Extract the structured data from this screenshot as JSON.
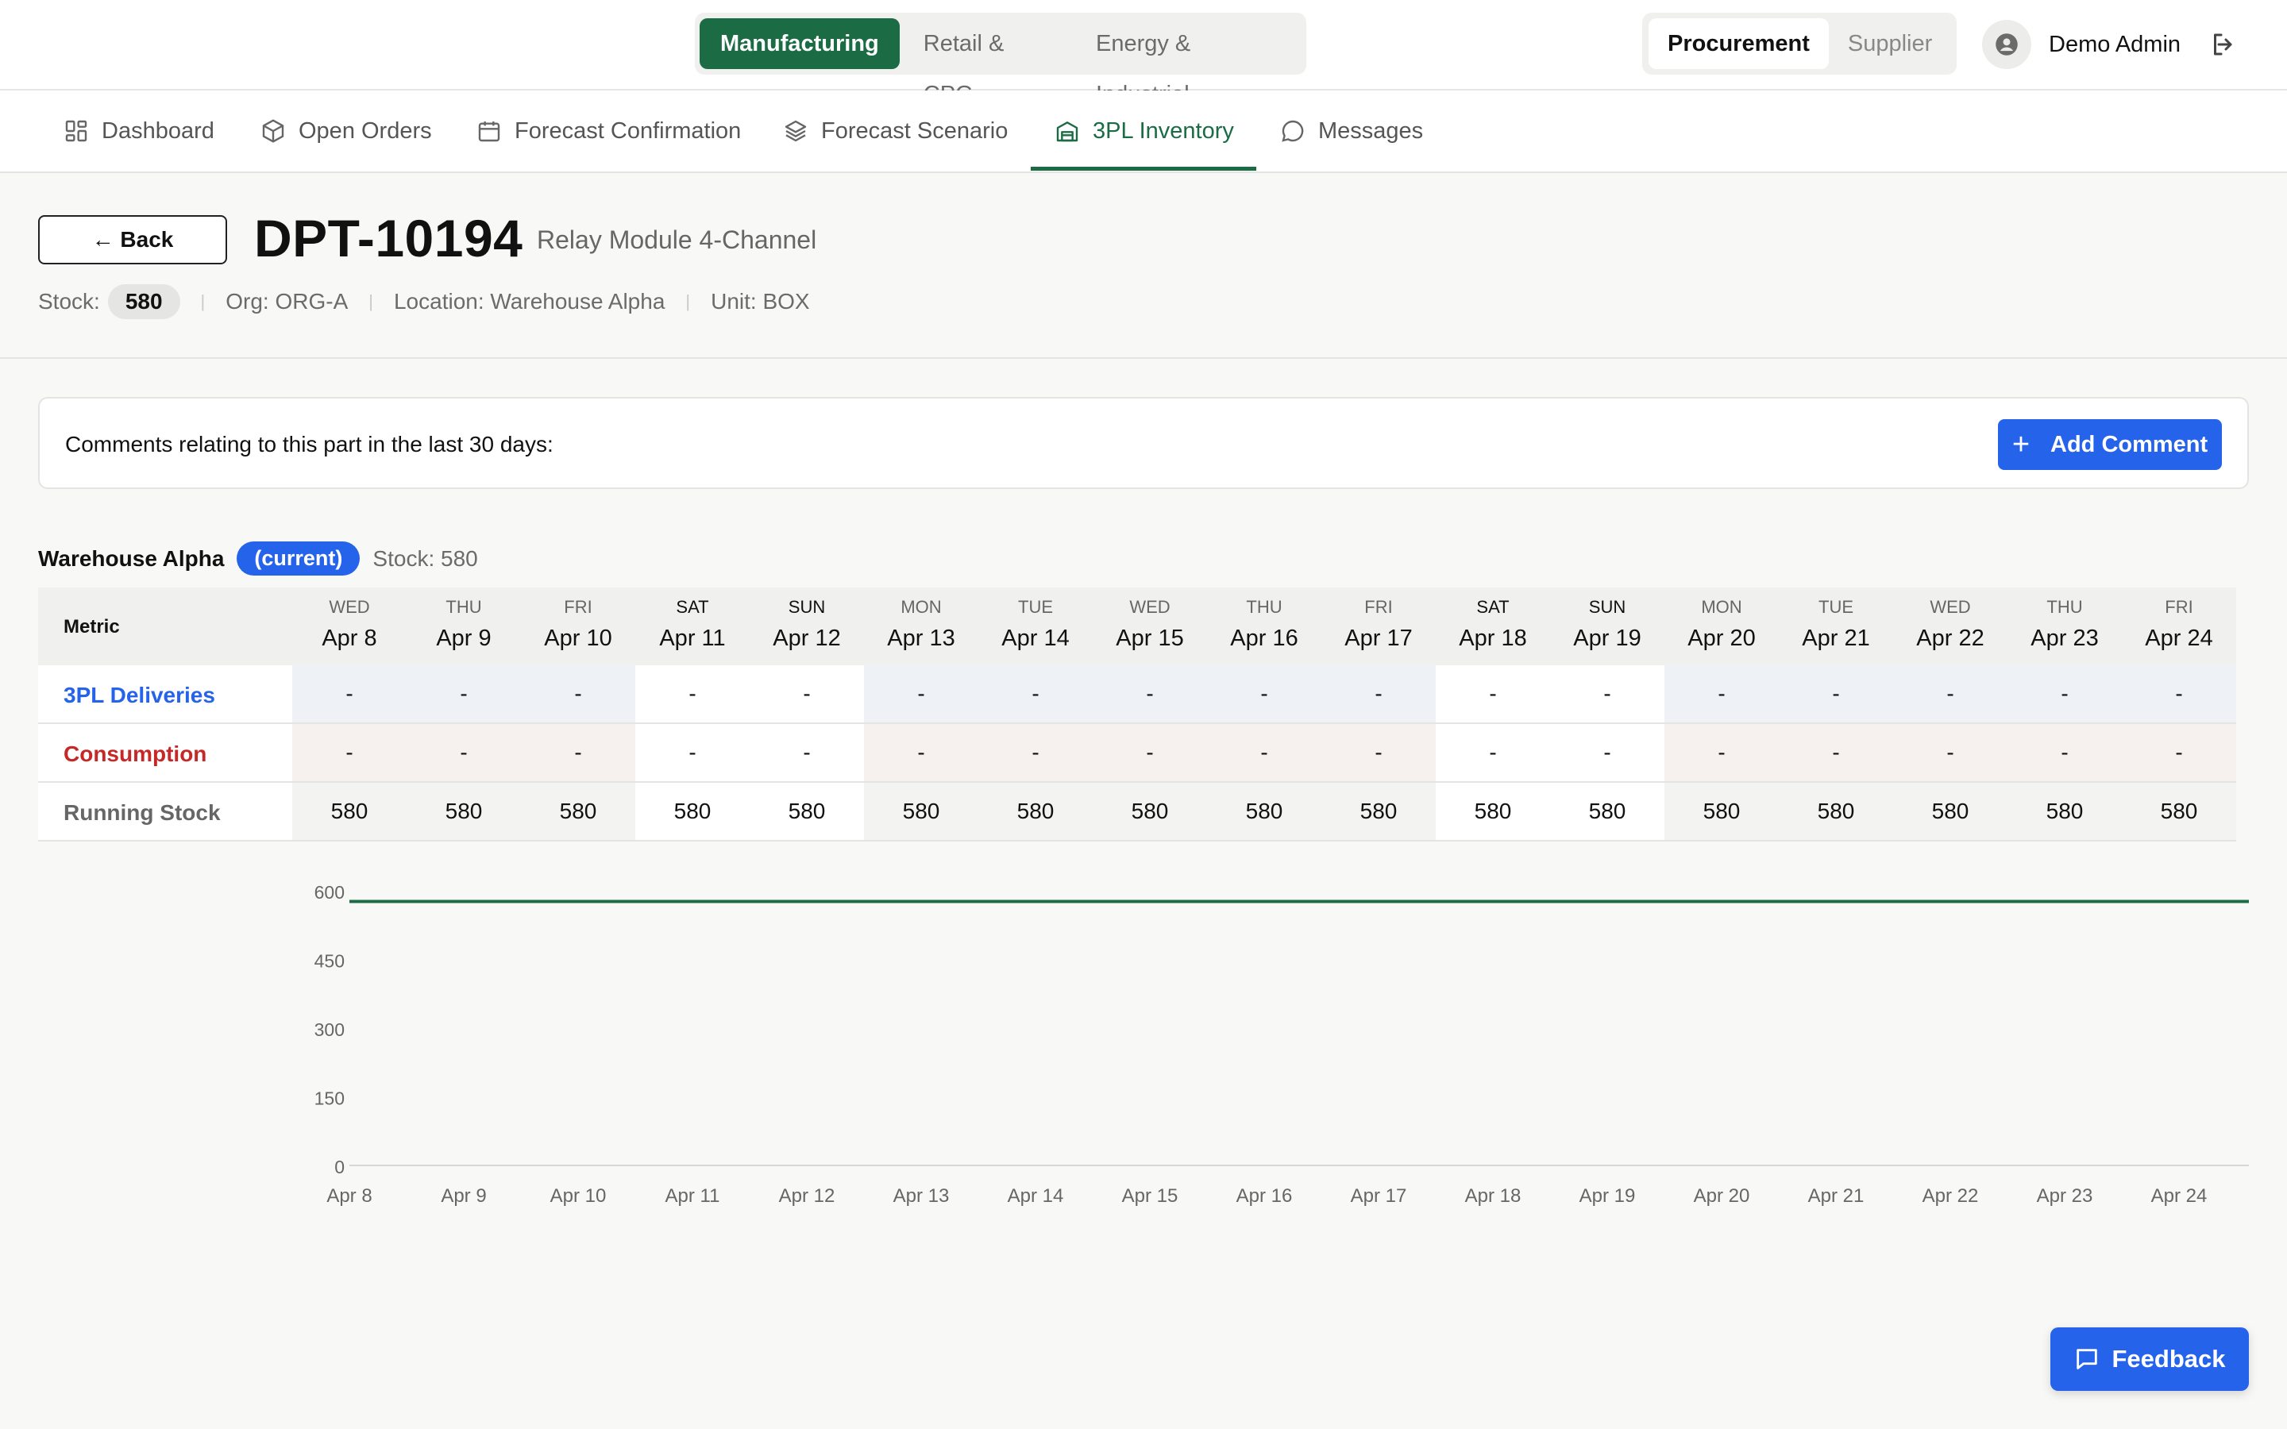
{
  "industries": [
    {
      "label": "Manufacturing",
      "active": true
    },
    {
      "label": "Retail & CPG",
      "active": false
    },
    {
      "label": "Energy & Industrial",
      "active": false
    }
  ],
  "roles": [
    {
      "label": "Procurement",
      "active": true
    },
    {
      "label": "Supplier",
      "active": false
    }
  ],
  "user": {
    "name": "Demo Admin",
    "avatar_icon": "user-circle-icon",
    "logout_icon": "logout-icon"
  },
  "nav": [
    {
      "label": "Dashboard",
      "icon": "grid-icon"
    },
    {
      "label": "Open Orders",
      "icon": "box-icon"
    },
    {
      "label": "Forecast Confirmation",
      "icon": "calendar-icon"
    },
    {
      "label": "Forecast Scenario",
      "icon": "layers-icon"
    },
    {
      "label": "3PL Inventory",
      "icon": "warehouse-icon",
      "active": true
    },
    {
      "label": "Messages",
      "icon": "chat-icon"
    }
  ],
  "part": {
    "back_label": "← Back",
    "number": "DPT-10194",
    "description": "Relay Module 4-Channel",
    "stock_label": "Stock:",
    "stock_value": "580",
    "org": "Org: ORG-A",
    "location": "Location: Warehouse Alpha",
    "unit": "Unit: BOX"
  },
  "comments": {
    "text": "Comments relating to this part in the last 30 days:",
    "add_label": "Add Comment"
  },
  "warehouse": {
    "name": "Warehouse Alpha",
    "badge": "(current)",
    "stock": "Stock: 580"
  },
  "table": {
    "metric_header": "Metric",
    "metrics": [
      {
        "label": "3PL Deliveries",
        "color": "#2563eb"
      },
      {
        "label": "Consumption",
        "color": "#c62828"
      },
      {
        "label": "Running Stock",
        "color": "#666666"
      }
    ],
    "days": [
      {
        "dow": "WED",
        "date": "Apr 8",
        "weekend": false,
        "deliveries": "-",
        "consumption": "-",
        "running": "580"
      },
      {
        "dow": "THU",
        "date": "Apr 9",
        "weekend": false,
        "deliveries": "-",
        "consumption": "-",
        "running": "580"
      },
      {
        "dow": "FRI",
        "date": "Apr 10",
        "weekend": false,
        "deliveries": "-",
        "consumption": "-",
        "running": "580"
      },
      {
        "dow": "SAT",
        "date": "Apr 11",
        "weekend": true,
        "deliveries": "-",
        "consumption": "-",
        "running": "580"
      },
      {
        "dow": "SUN",
        "date": "Apr 12",
        "weekend": true,
        "deliveries": "-",
        "consumption": "-",
        "running": "580"
      },
      {
        "dow": "MON",
        "date": "Apr 13",
        "weekend": false,
        "deliveries": "-",
        "consumption": "-",
        "running": "580"
      },
      {
        "dow": "TUE",
        "date": "Apr 14",
        "weekend": false,
        "deliveries": "-",
        "consumption": "-",
        "running": "580"
      },
      {
        "dow": "WED",
        "date": "Apr 15",
        "weekend": false,
        "deliveries": "-",
        "consumption": "-",
        "running": "580"
      },
      {
        "dow": "THU",
        "date": "Apr 16",
        "weekend": false,
        "deliveries": "-",
        "consumption": "-",
        "running": "580"
      },
      {
        "dow": "FRI",
        "date": "Apr 17",
        "weekend": false,
        "deliveries": "-",
        "consumption": "-",
        "running": "580"
      },
      {
        "dow": "SAT",
        "date": "Apr 18",
        "weekend": true,
        "deliveries": "-",
        "consumption": "-",
        "running": "580"
      },
      {
        "dow": "SUN",
        "date": "Apr 19",
        "weekend": true,
        "deliveries": "-",
        "consumption": "-",
        "running": "580"
      },
      {
        "dow": "MON",
        "date": "Apr 20",
        "weekend": false,
        "deliveries": "-",
        "consumption": "-",
        "running": "580"
      },
      {
        "dow": "TUE",
        "date": "Apr 21",
        "weekend": false,
        "deliveries": "-",
        "consumption": "-",
        "running": "580"
      },
      {
        "dow": "WED",
        "date": "Apr 22",
        "weekend": false,
        "deliveries": "-",
        "consumption": "-",
        "running": "580"
      },
      {
        "dow": "THU",
        "date": "Apr 23",
        "weekend": false,
        "deliveries": "-",
        "consumption": "-",
        "running": "580"
      },
      {
        "dow": "FRI",
        "date": "Apr 24",
        "weekend": false,
        "deliveries": "-",
        "consumption": "-",
        "running": "580"
      }
    ]
  },
  "chart_data": {
    "type": "line",
    "categories": [
      "Apr 8",
      "Apr 9",
      "Apr 10",
      "Apr 11",
      "Apr 12",
      "Apr 13",
      "Apr 14",
      "Apr 15",
      "Apr 16",
      "Apr 17",
      "Apr 18",
      "Apr 19",
      "Apr 20",
      "Apr 21",
      "Apr 22",
      "Apr 23",
      "Apr 24"
    ],
    "series": [
      {
        "values": [
          580,
          580,
          580,
          580,
          580,
          580,
          580,
          580,
          580,
          580,
          580,
          580,
          580,
          580,
          580,
          580,
          580
        ],
        "color": "#1b6b45"
      }
    ],
    "yticks": [
      "0",
      "150",
      "300",
      "450",
      "600"
    ],
    "ylim": [
      0,
      600
    ],
    "grid": false,
    "title": "",
    "xlabel": "",
    "ylabel": ""
  },
  "feedback": {
    "label": "Feedback"
  },
  "colors": {
    "brand_green": "#1b6b45",
    "accent_blue": "#2563eb",
    "danger_red": "#c62828"
  }
}
